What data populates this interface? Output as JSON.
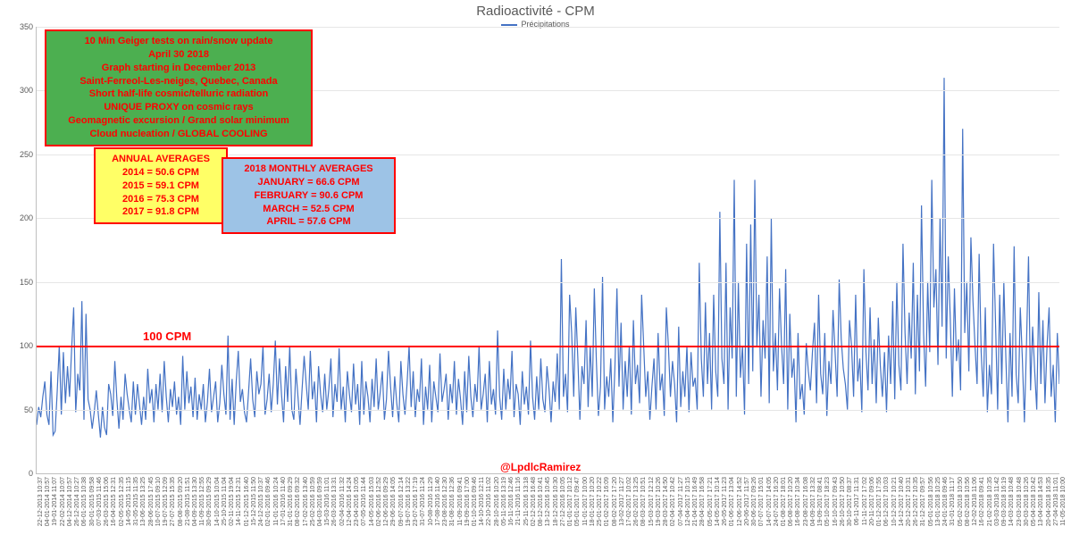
{
  "title": "Radioactivité - CPM",
  "legend_label": "Précipitations",
  "series_color": "#4472c4",
  "background_color": "#ffffff",
  "grid_color": "#e6e6e6",
  "axis_color": "#bfbfbf",
  "ylim": [
    0,
    350
  ],
  "ytick_step": 50,
  "yticks": [
    0,
    50,
    100,
    150,
    200,
    250,
    300,
    350
  ],
  "reference_line": {
    "value": 100,
    "color": "#ff0000",
    "label": "100  CPM"
  },
  "credit": "@LpdlcRamirez",
  "box_main": {
    "lines": [
      "10 Min Geiger tests on rain/snow update",
      "April 30 2018",
      "Graph starting in December 2013",
      "Saint-Ferreol-Les-neiges, Quebec, Canada",
      "Short half-life cosmic/telluric radiation",
      "UNIQUE PROXY on cosmic rays",
      "Geomagnetic excursion / Grand solar minimum",
      "Cloud nucleation / GLOBAL COOLING"
    ]
  },
  "box_annual": {
    "header": "ANNUAL AVERAGES",
    "lines": [
      "2014 = 50.6 CPM",
      "2015 = 59.1 CPM",
      "2016 = 75.3 CPM",
      "2017 = 91.8 CPM"
    ]
  },
  "box_monthly": {
    "header": "2018 MONTHLY AVERAGES",
    "lines": [
      "JANUARY = 66.6 CPM",
      "FEBRUARY = 90.6 CPM",
      "MARCH = 52.5 CPM",
      "APRIL = 57.6 CPM"
    ]
  },
  "x_labels": [
    "22-12-2013 10:37",
    "04-01-2014 10:57",
    "19-01-2014 11:07",
    "22-02-2014 10:07",
    "04-12-2014 10:57",
    "26-12-2014 10:27",
    "06-01-2015 10:38",
    "30-01-2015 09:58",
    "07-03-2015 11:46",
    "26-03-2015 15:06",
    "16-04-2015 12:31",
    "02-05-2015 12:35",
    "14-05-2015 11:15",
    "31-05-2015 11:35",
    "13-06-2015 13:25",
    "28-06-2015 17:45",
    "10-07-2015 09:10",
    "19-07-2015 12:09",
    "27-07-2015 15:35",
    "08-08-2015 09:20",
    "21-08-2015 11:51",
    "04-09-2015 13:30",
    "11-09-2015 12:55",
    "30-09-2015 09:29",
    "14-10-2015 10:04",
    "25-10-2015 11:04",
    "02-11-2015 19:04",
    "14-11-2015 12:31",
    "01-12-2015 16:40",
    "15-12-2015 11:50",
    "24-12-2015 10:37",
    "02-01-2016 09:46",
    "11-01-2016 10:24",
    "17-01-2016 11:40",
    "31-01-2016 09:29",
    "08-02-2016 09:32",
    "17-02-2016 13:40",
    "25-02-2016 10:59",
    "04-03-2016 09:59",
    "15-03-2016 11:01",
    "26-03-2016 13:31",
    "02-04-2016 11:32",
    "12-04-2016 14:24",
    "23-04-2016 10:05",
    "07-05-2016 11:44",
    "14-05-2016 15:03",
    "02-06-2016 12:52",
    "12-06-2016 09:29",
    "29-06-2016 14:05",
    "09-07-2016 12:14",
    "19-07-2016 13:22",
    "23-07-2016 17:19",
    "31-07-2016 11:24",
    "10-08-2016 11:29",
    "17-08-2016 11:40",
    "23-08-2016 12:30",
    "31-08-2016 12:36",
    "11-09-2016 09:41",
    "19-09-2016 17:00",
    "01-10-2016 09:46",
    "14-10-2016 12:11",
    "22-10-2016 11:02",
    "28-10-2016 10:20",
    "05-11-2016 13:19",
    "16-11-2016 12:46",
    "21-11-2016 11:16",
    "25-11-2016 13:18",
    "02-12-2016 16:48",
    "08-12-2016 10:41",
    "13-12-2016 10:45",
    "18-12-2016 10:30",
    "27-12-2016 10:05",
    "01-01-2017 10:12",
    "05-01-2017 09:47",
    "11-01-2017 10:00",
    "18-01-2017 10:20",
    "25-01-2017 10:22",
    "01-02-2017 16:09",
    "08-02-2017 17:20",
    "13-02-2017 11:27",
    "17-02-2017 10:02",
    "26-02-2017 13:25",
    "08-03-2017 10:51",
    "15-03-2017 12:12",
    "19-03-2017 10:26",
    "28-03-2017 14:50",
    "02-04-2017 10:42",
    "07-04-2017 11:27",
    "12-04-2017 10:15",
    "21-04-2017 16:49",
    "28-04-2017 16:58",
    "05-05-2017 17:21",
    "14-05-2017 10:14",
    "26-05-2017 11:23",
    "01-06-2017 13:04",
    "12-06-2017 14:52",
    "20-06-2017 11:57",
    "30-06-2017 09:26",
    "07-07-2017 15:01",
    "14-07-2017 14:05",
    "24-07-2017 16:20",
    "01-08-2017 18:01",
    "06-08-2017 10:20",
    "16-08-2017 10:34",
    "23-08-2017 16:08",
    "04-09-2017 13:32",
    "19-09-2017 08:41",
    "05-10-2017 18:23",
    "16-10-2017 09:43",
    "26-10-2017 10:50",
    "30-10-2017 08:37",
    "06-11-2017 11:31",
    "11-11-2017 17:02",
    "20-11-2017 09:06",
    "01-12-2017 17:55",
    "06-12-2017 10:03",
    "10-12-2017 10:21",
    "14-12-2017 10:40",
    "20-12-2017 10:31",
    "26-12-2017 10:35",
    "31-12-2017 09:57",
    "05-01-2018 10:56",
    "13-01-2018 10:25",
    "24-01-2018 09:46",
    "31-01-2018 11:17",
    "05-02-2018 10:50",
    "08-02-2018 10:56",
    "12-02-2018 11:06",
    "16-02-2018 09:41",
    "21-02-2018 10:35",
    "03-03-2018 11:42",
    "09-03-2018 16:19",
    "14-03-2018 10:48",
    "23-03-2018 10:48",
    "30-03-2018 10:26",
    "05-04-2018 10:42",
    "13-04-2018 14:53",
    "20-04-2018 16:35",
    "27-04-2018 11:01",
    "11-05-2018 10:00"
  ],
  "values": [
    38,
    52,
    44,
    60,
    72,
    46,
    38,
    80,
    30,
    33,
    64,
    100,
    46,
    95,
    55,
    84,
    60,
    97,
    130,
    48,
    78,
    65,
    135,
    42,
    125,
    58,
    50,
    35,
    48,
    65,
    46,
    28,
    52,
    36,
    30,
    70,
    62,
    45,
    88,
    58,
    35,
    60,
    42,
    78,
    62,
    50,
    40,
    72,
    46,
    70,
    54,
    38,
    60,
    42,
    82,
    55,
    66,
    40,
    70,
    50,
    78,
    48,
    88,
    60,
    40,
    66,
    52,
    72,
    46,
    60,
    38,
    92,
    50,
    80,
    55,
    68,
    44,
    75,
    42,
    62,
    50,
    70,
    40,
    56,
    82,
    48,
    60,
    72,
    40,
    55,
    85,
    62,
    46,
    108,
    42,
    74,
    38,
    72,
    96,
    56,
    66,
    48,
    40,
    64,
    90,
    58,
    44,
    80,
    62,
    70,
    100,
    46,
    58,
    78,
    48,
    70,
    104,
    54,
    90,
    62,
    40,
    84,
    56,
    100,
    50,
    42,
    82,
    60,
    38,
    66,
    92,
    70,
    50,
    96,
    58,
    72,
    40,
    84,
    62,
    48,
    78,
    50,
    66,
    90,
    44,
    70,
    56,
    98,
    50,
    68,
    40,
    80,
    62,
    48,
    86,
    54,
    70,
    38,
    88,
    46,
    72,
    60,
    40,
    74,
    52,
    90,
    50,
    64,
    80,
    42,
    58,
    96,
    68,
    44,
    76,
    55,
    40,
    88,
    62,
    46,
    70,
    100,
    52,
    80,
    44,
    66,
    56,
    90,
    38,
    68,
    50,
    85,
    40,
    72,
    60,
    48,
    94,
    56,
    66,
    78,
    42,
    70,
    55,
    88,
    46,
    74,
    58,
    38,
    80,
    48,
    92,
    60,
    44,
    70,
    56,
    100,
    50,
    62,
    78,
    40,
    88,
    54,
    66,
    46,
    112,
    60,
    42,
    82,
    50,
    74,
    58,
    96,
    44,
    70,
    62,
    38,
    80,
    54,
    68,
    46,
    104,
    60,
    42,
    76,
    50,
    90,
    58,
    48,
    84,
    66,
    40,
    72,
    56,
    94,
    50,
    168,
    60,
    78,
    48,
    140,
    110,
    60,
    130,
    90,
    42,
    84,
    70,
    120,
    52,
    100,
    60,
    145,
    88,
    45,
    68,
    154,
    50,
    76,
    60,
    90,
    40,
    82,
    145,
    68,
    118,
    50,
    88,
    60,
    100,
    46,
    120,
    70,
    85,
    55,
    140,
    100,
    60,
    80,
    42,
    68,
    90,
    50,
    110,
    65,
    78,
    45,
    130,
    100,
    60,
    88,
    70,
    40,
    115,
    52,
    80,
    60,
    100,
    48,
    95,
    68,
    75,
    50,
    165,
    90,
    60,
    134,
    70,
    110,
    50,
    140,
    80,
    60,
    205,
    90,
    70,
    165,
    50,
    130,
    90,
    230,
    60,
    150,
    75,
    100,
    46,
    180,
    70,
    195,
    80,
    230,
    100,
    140,
    60,
    120,
    90,
    170,
    55,
    200,
    80,
    110,
    65,
    145,
    100,
    70,
    160,
    50,
    125,
    75,
    90,
    40,
    110,
    58,
    70,
    46,
    102,
    80,
    65,
    95,
    118,
    55,
    140,
    78,
    62,
    110,
    45,
    88,
    70,
    128,
    95,
    60,
    152,
    105,
    82,
    70,
    50,
    120,
    100,
    60,
    140,
    72,
    90,
    48,
    160,
    95,
    65,
    130,
    70,
    105,
    55,
    122,
    84,
    60,
    95,
    48,
    108,
    70,
    135,
    58,
    150,
    85,
    65,
    180,
    110,
    70,
    126,
    90,
    165,
    62,
    140,
    80,
    210,
    110,
    68,
    150,
    95,
    230,
    130,
    160,
    85,
    200,
    115,
    310,
    90,
    170,
    120,
    60,
    145,
    88,
    105,
    65,
    270,
    110,
    150,
    80,
    185,
    135,
    100,
    70,
    172,
    95,
    60,
    130,
    48,
    85,
    62,
    180,
    116,
    50,
    140,
    70,
    150,
    90,
    40,
    110,
    60,
    178,
    78,
    55,
    130,
    90,
    40,
    100,
    170,
    65,
    115,
    80,
    50,
    142,
    70,
    120,
    55,
    100,
    130,
    60,
    85,
    40,
    110,
    70
  ]
}
